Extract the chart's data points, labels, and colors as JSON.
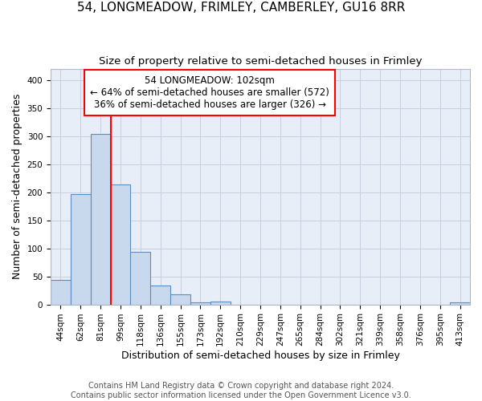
{
  "title": "54, LONGMEADOW, FRIMLEY, CAMBERLEY, GU16 8RR",
  "subtitle": "Size of property relative to semi-detached houses in Frimley",
  "xlabel": "Distribution of semi-detached houses by size in Frimley",
  "ylabel": "Number of semi-detached properties",
  "footer_line1": "Contains HM Land Registry data © Crown copyright and database right 2024.",
  "footer_line2": "Contains public sector information licensed under the Open Government Licence v3.0.",
  "categories": [
    "44sqm",
    "62sqm",
    "81sqm",
    "99sqm",
    "118sqm",
    "136sqm",
    "155sqm",
    "173sqm",
    "192sqm",
    "210sqm",
    "229sqm",
    "247sqm",
    "265sqm",
    "284sqm",
    "302sqm",
    "321sqm",
    "339sqm",
    "358sqm",
    "376sqm",
    "395sqm",
    "413sqm"
  ],
  "values": [
    44,
    196,
    304,
    214,
    93,
    33,
    18,
    4,
    5,
    0,
    0,
    0,
    0,
    0,
    0,
    0,
    0,
    0,
    0,
    0,
    4
  ],
  "bar_color": "#c9d9ed",
  "bar_edge_color": "#5b8dc0",
  "grid_color": "#c8d0e0",
  "background_color": "#e8eef8",
  "annotation_line1": "54 LONGMEADOW: 102sqm",
  "annotation_line2": "← 64% of semi-detached houses are smaller (572)",
  "annotation_line3": "36% of semi-detached houses are larger (326) →",
  "property_line_x": 2.5,
  "ylim": [
    0,
    420
  ],
  "yticks": [
    0,
    50,
    100,
    150,
    200,
    250,
    300,
    350,
    400
  ],
  "title_fontsize": 11,
  "subtitle_fontsize": 9.5,
  "ylabel_fontsize": 9,
  "xlabel_fontsize": 9,
  "tick_fontsize": 7.5,
  "annotation_fontsize": 8.5,
  "footer_fontsize": 7
}
